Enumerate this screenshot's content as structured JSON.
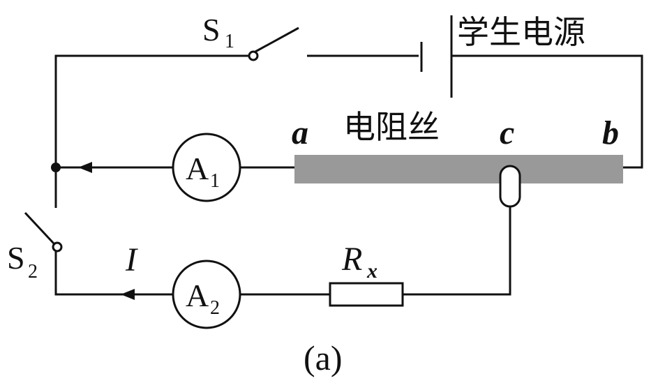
{
  "labels": {
    "switch1": "S",
    "switch1_sub": "1",
    "switch2": "S",
    "switch2_sub": "2",
    "power_supply": "学生电源",
    "resistance_wire": "电阻丝",
    "point_a": "a",
    "point_b": "b",
    "point_c": "c",
    "ammeter1": "A",
    "ammeter1_sub": "1",
    "ammeter2": "A",
    "ammeter2_sub": "2",
    "resistor": "R",
    "resistor_sub": "x",
    "current": "I",
    "caption": "(a)"
  },
  "colors": {
    "wire": "#111111",
    "resistance_wire": "#999999",
    "background": "#ffffff"
  }
}
